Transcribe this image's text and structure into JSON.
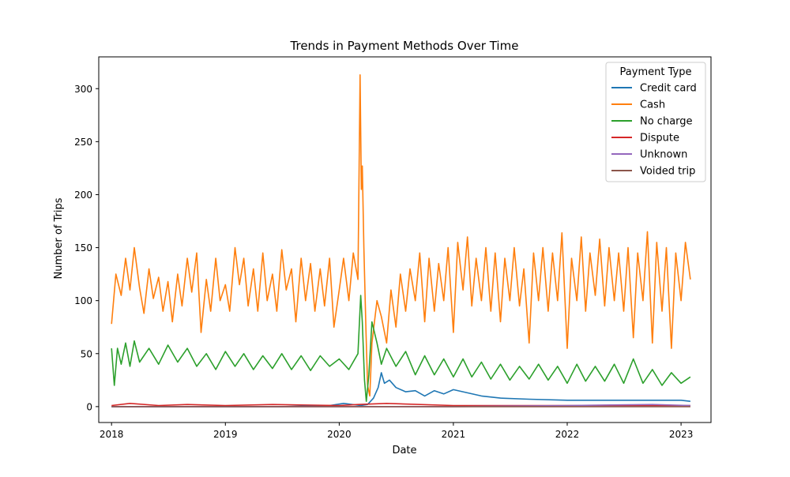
{
  "chart_data": {
    "type": "line",
    "title": "Trends in Payment Methods Over Time",
    "xlabel": "Date",
    "ylabel": "Number of Trips",
    "x_range": [
      "2017-11-21",
      "2023-04-07"
    ],
    "xticks": [
      "2018",
      "2019",
      "2020",
      "2021",
      "2022",
      "2023"
    ],
    "ylim": [
      -15,
      330
    ],
    "yticks": [
      0,
      50,
      100,
      150,
      200,
      250,
      300
    ],
    "grid": false,
    "legend": {
      "title": "Payment Type",
      "position": "top-right"
    },
    "series": [
      {
        "name": "Credit card",
        "color": "#1f77b4",
        "points": [
          [
            "2018-01-01",
            0
          ],
          [
            "2018-07-01",
            0
          ],
          [
            "2019-01-01",
            0
          ],
          [
            "2019-07-01",
            0
          ],
          [
            "2019-12-01",
            1
          ],
          [
            "2020-01-15",
            3
          ],
          [
            "2020-03-10",
            1
          ],
          [
            "2020-04-01",
            2
          ],
          [
            "2020-04-20",
            8
          ],
          [
            "2020-05-05",
            18
          ],
          [
            "2020-05-15",
            32
          ],
          [
            "2020-05-25",
            22
          ],
          [
            "2020-06-10",
            25
          ],
          [
            "2020-07-01",
            18
          ],
          [
            "2020-08-01",
            14
          ],
          [
            "2020-09-01",
            15
          ],
          [
            "2020-10-01",
            10
          ],
          [
            "2020-11-01",
            15
          ],
          [
            "2020-12-01",
            12
          ],
          [
            "2021-01-01",
            16
          ],
          [
            "2021-02-01",
            14
          ],
          [
            "2021-04-01",
            10
          ],
          [
            "2021-06-01",
            8
          ],
          [
            "2021-09-01",
            7
          ],
          [
            "2022-01-01",
            6
          ],
          [
            "2022-06-01",
            6
          ],
          [
            "2022-10-01",
            6
          ],
          [
            "2023-01-01",
            6
          ],
          [
            "2023-01-31",
            5
          ]
        ]
      },
      {
        "name": "Cash",
        "color": "#ff7f0e",
        "points": [
          [
            "2018-01-01",
            78
          ],
          [
            "2018-01-15",
            125
          ],
          [
            "2018-02-01",
            105
          ],
          [
            "2018-02-15",
            140
          ],
          [
            "2018-03-01",
            110
          ],
          [
            "2018-03-15",
            150
          ],
          [
            "2018-04-01",
            112
          ],
          [
            "2018-04-15",
            88
          ],
          [
            "2018-05-01",
            130
          ],
          [
            "2018-05-15",
            102
          ],
          [
            "2018-06-01",
            122
          ],
          [
            "2018-06-15",
            90
          ],
          [
            "2018-07-01",
            118
          ],
          [
            "2018-07-15",
            80
          ],
          [
            "2018-08-01",
            125
          ],
          [
            "2018-08-15",
            95
          ],
          [
            "2018-09-01",
            140
          ],
          [
            "2018-09-15",
            108
          ],
          [
            "2018-10-01",
            145
          ],
          [
            "2018-10-15",
            70
          ],
          [
            "2018-11-01",
            120
          ],
          [
            "2018-11-15",
            90
          ],
          [
            "2018-12-01",
            140
          ],
          [
            "2018-12-15",
            100
          ],
          [
            "2019-01-01",
            115
          ],
          [
            "2019-01-15",
            90
          ],
          [
            "2019-02-01",
            150
          ],
          [
            "2019-02-15",
            115
          ],
          [
            "2019-03-01",
            140
          ],
          [
            "2019-03-15",
            95
          ],
          [
            "2019-04-01",
            130
          ],
          [
            "2019-04-15",
            90
          ],
          [
            "2019-05-01",
            145
          ],
          [
            "2019-05-15",
            100
          ],
          [
            "2019-06-01",
            125
          ],
          [
            "2019-06-15",
            90
          ],
          [
            "2019-07-01",
            148
          ],
          [
            "2019-07-15",
            110
          ],
          [
            "2019-08-01",
            130
          ],
          [
            "2019-08-15",
            80
          ],
          [
            "2019-09-01",
            140
          ],
          [
            "2019-09-15",
            100
          ],
          [
            "2019-10-01",
            135
          ],
          [
            "2019-10-15",
            90
          ],
          [
            "2019-11-01",
            130
          ],
          [
            "2019-11-15",
            95
          ],
          [
            "2019-12-01",
            140
          ],
          [
            "2019-12-15",
            75
          ],
          [
            "2020-01-01",
            110
          ],
          [
            "2020-01-15",
            140
          ],
          [
            "2020-02-01",
            100
          ],
          [
            "2020-02-15",
            145
          ],
          [
            "2020-03-01",
            120
          ],
          [
            "2020-03-08",
            313
          ],
          [
            "2020-03-12",
            205
          ],
          [
            "2020-03-15",
            227
          ],
          [
            "2020-03-20",
            150
          ],
          [
            "2020-03-27",
            70
          ],
          [
            "2020-04-01",
            20
          ],
          [
            "2020-04-08",
            10
          ],
          [
            "2020-04-15",
            60
          ],
          [
            "2020-05-01",
            100
          ],
          [
            "2020-05-15",
            85
          ],
          [
            "2020-06-01",
            60
          ],
          [
            "2020-06-15",
            110
          ],
          [
            "2020-07-01",
            75
          ],
          [
            "2020-07-15",
            125
          ],
          [
            "2020-08-01",
            90
          ],
          [
            "2020-08-15",
            130
          ],
          [
            "2020-09-01",
            100
          ],
          [
            "2020-09-15",
            145
          ],
          [
            "2020-10-01",
            80
          ],
          [
            "2020-10-15",
            140
          ],
          [
            "2020-11-01",
            90
          ],
          [
            "2020-11-15",
            135
          ],
          [
            "2020-12-01",
            100
          ],
          [
            "2020-12-15",
            150
          ],
          [
            "2021-01-01",
            70
          ],
          [
            "2021-01-15",
            155
          ],
          [
            "2021-02-01",
            110
          ],
          [
            "2021-02-15",
            160
          ],
          [
            "2021-03-01",
            95
          ],
          [
            "2021-03-15",
            140
          ],
          [
            "2021-04-01",
            100
          ],
          [
            "2021-04-15",
            150
          ],
          [
            "2021-05-01",
            90
          ],
          [
            "2021-05-15",
            145
          ],
          [
            "2021-06-01",
            80
          ],
          [
            "2021-06-15",
            140
          ],
          [
            "2021-07-01",
            100
          ],
          [
            "2021-07-15",
            150
          ],
          [
            "2021-08-01",
            95
          ],
          [
            "2021-08-15",
            130
          ],
          [
            "2021-09-01",
            60
          ],
          [
            "2021-09-15",
            145
          ],
          [
            "2021-10-01",
            100
          ],
          [
            "2021-10-15",
            150
          ],
          [
            "2021-11-01",
            90
          ],
          [
            "2021-11-15",
            145
          ],
          [
            "2021-12-01",
            100
          ],
          [
            "2021-12-15",
            164
          ],
          [
            "2022-01-01",
            55
          ],
          [
            "2022-01-15",
            140
          ],
          [
            "2022-02-01",
            100
          ],
          [
            "2022-02-15",
            160
          ],
          [
            "2022-03-01",
            90
          ],
          [
            "2022-03-15",
            145
          ],
          [
            "2022-04-01",
            105
          ],
          [
            "2022-04-15",
            158
          ],
          [
            "2022-05-01",
            95
          ],
          [
            "2022-05-15",
            150
          ],
          [
            "2022-06-01",
            100
          ],
          [
            "2022-06-15",
            145
          ],
          [
            "2022-07-01",
            90
          ],
          [
            "2022-07-15",
            150
          ],
          [
            "2022-08-01",
            65
          ],
          [
            "2022-08-15",
            145
          ],
          [
            "2022-09-01",
            100
          ],
          [
            "2022-09-15",
            165
          ],
          [
            "2022-10-01",
            60
          ],
          [
            "2022-10-15",
            155
          ],
          [
            "2022-11-01",
            90
          ],
          [
            "2022-11-15",
            150
          ],
          [
            "2022-12-01",
            55
          ],
          [
            "2022-12-15",
            145
          ],
          [
            "2023-01-01",
            100
          ],
          [
            "2023-01-15",
            155
          ],
          [
            "2023-01-31",
            120
          ]
        ]
      },
      {
        "name": "No charge",
        "color": "#2ca02c",
        "points": [
          [
            "2018-01-01",
            55
          ],
          [
            "2018-01-10",
            20
          ],
          [
            "2018-01-20",
            55
          ],
          [
            "2018-02-01",
            40
          ],
          [
            "2018-02-15",
            60
          ],
          [
            "2018-03-01",
            38
          ],
          [
            "2018-03-15",
            62
          ],
          [
            "2018-04-01",
            42
          ],
          [
            "2018-05-01",
            55
          ],
          [
            "2018-06-01",
            40
          ],
          [
            "2018-07-01",
            58
          ],
          [
            "2018-08-01",
            42
          ],
          [
            "2018-09-01",
            55
          ],
          [
            "2018-10-01",
            38
          ],
          [
            "2018-11-01",
            50
          ],
          [
            "2018-12-01",
            35
          ],
          [
            "2019-01-01",
            52
          ],
          [
            "2019-02-01",
            38
          ],
          [
            "2019-03-01",
            50
          ],
          [
            "2019-04-01",
            35
          ],
          [
            "2019-05-01",
            48
          ],
          [
            "2019-06-01",
            36
          ],
          [
            "2019-07-01",
            50
          ],
          [
            "2019-08-01",
            35
          ],
          [
            "2019-09-01",
            48
          ],
          [
            "2019-10-01",
            34
          ],
          [
            "2019-11-01",
            48
          ],
          [
            "2019-12-01",
            38
          ],
          [
            "2020-01-01",
            45
          ],
          [
            "2020-02-01",
            35
          ],
          [
            "2020-03-01",
            50
          ],
          [
            "2020-03-10",
            105
          ],
          [
            "2020-03-15",
            80
          ],
          [
            "2020-03-22",
            25
          ],
          [
            "2020-03-28",
            5
          ],
          [
            "2020-04-05",
            30
          ],
          [
            "2020-04-15",
            80
          ],
          [
            "2020-05-01",
            60
          ],
          [
            "2020-05-15",
            40
          ],
          [
            "2020-06-01",
            55
          ],
          [
            "2020-07-01",
            38
          ],
          [
            "2020-08-01",
            52
          ],
          [
            "2020-09-01",
            30
          ],
          [
            "2020-10-01",
            48
          ],
          [
            "2020-11-01",
            30
          ],
          [
            "2020-12-01",
            45
          ],
          [
            "2021-01-01",
            28
          ],
          [
            "2021-02-01",
            45
          ],
          [
            "2021-03-01",
            28
          ],
          [
            "2021-04-01",
            42
          ],
          [
            "2021-05-01",
            26
          ],
          [
            "2021-06-01",
            40
          ],
          [
            "2021-07-01",
            25
          ],
          [
            "2021-08-01",
            38
          ],
          [
            "2021-09-01",
            26
          ],
          [
            "2021-10-01",
            40
          ],
          [
            "2021-11-01",
            25
          ],
          [
            "2021-12-01",
            38
          ],
          [
            "2022-01-01",
            22
          ],
          [
            "2022-02-01",
            40
          ],
          [
            "2022-03-01",
            24
          ],
          [
            "2022-04-01",
            38
          ],
          [
            "2022-05-01",
            24
          ],
          [
            "2022-06-01",
            40
          ],
          [
            "2022-07-01",
            22
          ],
          [
            "2022-08-01",
            45
          ],
          [
            "2022-09-01",
            22
          ],
          [
            "2022-10-01",
            35
          ],
          [
            "2022-11-01",
            20
          ],
          [
            "2022-12-01",
            32
          ],
          [
            "2023-01-01",
            22
          ],
          [
            "2023-01-31",
            28
          ]
        ]
      },
      {
        "name": "Dispute",
        "color": "#d62728",
        "points": [
          [
            "2018-01-01",
            1
          ],
          [
            "2018-03-01",
            3
          ],
          [
            "2018-06-01",
            1
          ],
          [
            "2018-09-01",
            2
          ],
          [
            "2019-01-01",
            1
          ],
          [
            "2019-06-01",
            2
          ],
          [
            "2020-01-01",
            1
          ],
          [
            "2020-03-01",
            2
          ],
          [
            "2020-06-01",
            3
          ],
          [
            "2021-01-01",
            1
          ],
          [
            "2021-06-01",
            1
          ],
          [
            "2022-01-01",
            1
          ],
          [
            "2022-06-01",
            1
          ],
          [
            "2023-01-31",
            1
          ]
        ]
      },
      {
        "name": "Unknown",
        "color": "#9467bd",
        "points": [
          [
            "2018-01-01",
            0
          ],
          [
            "2019-01-01",
            0
          ],
          [
            "2020-01-01",
            0
          ],
          [
            "2021-01-01",
            0
          ],
          [
            "2022-01-01",
            1
          ],
          [
            "2022-10-01",
            2
          ],
          [
            "2023-01-31",
            1
          ]
        ]
      },
      {
        "name": "Voided trip",
        "color": "#8c564b",
        "points": [
          [
            "2018-01-01",
            0
          ],
          [
            "2020-01-01",
            0
          ],
          [
            "2023-01-31",
            0
          ]
        ]
      }
    ]
  }
}
